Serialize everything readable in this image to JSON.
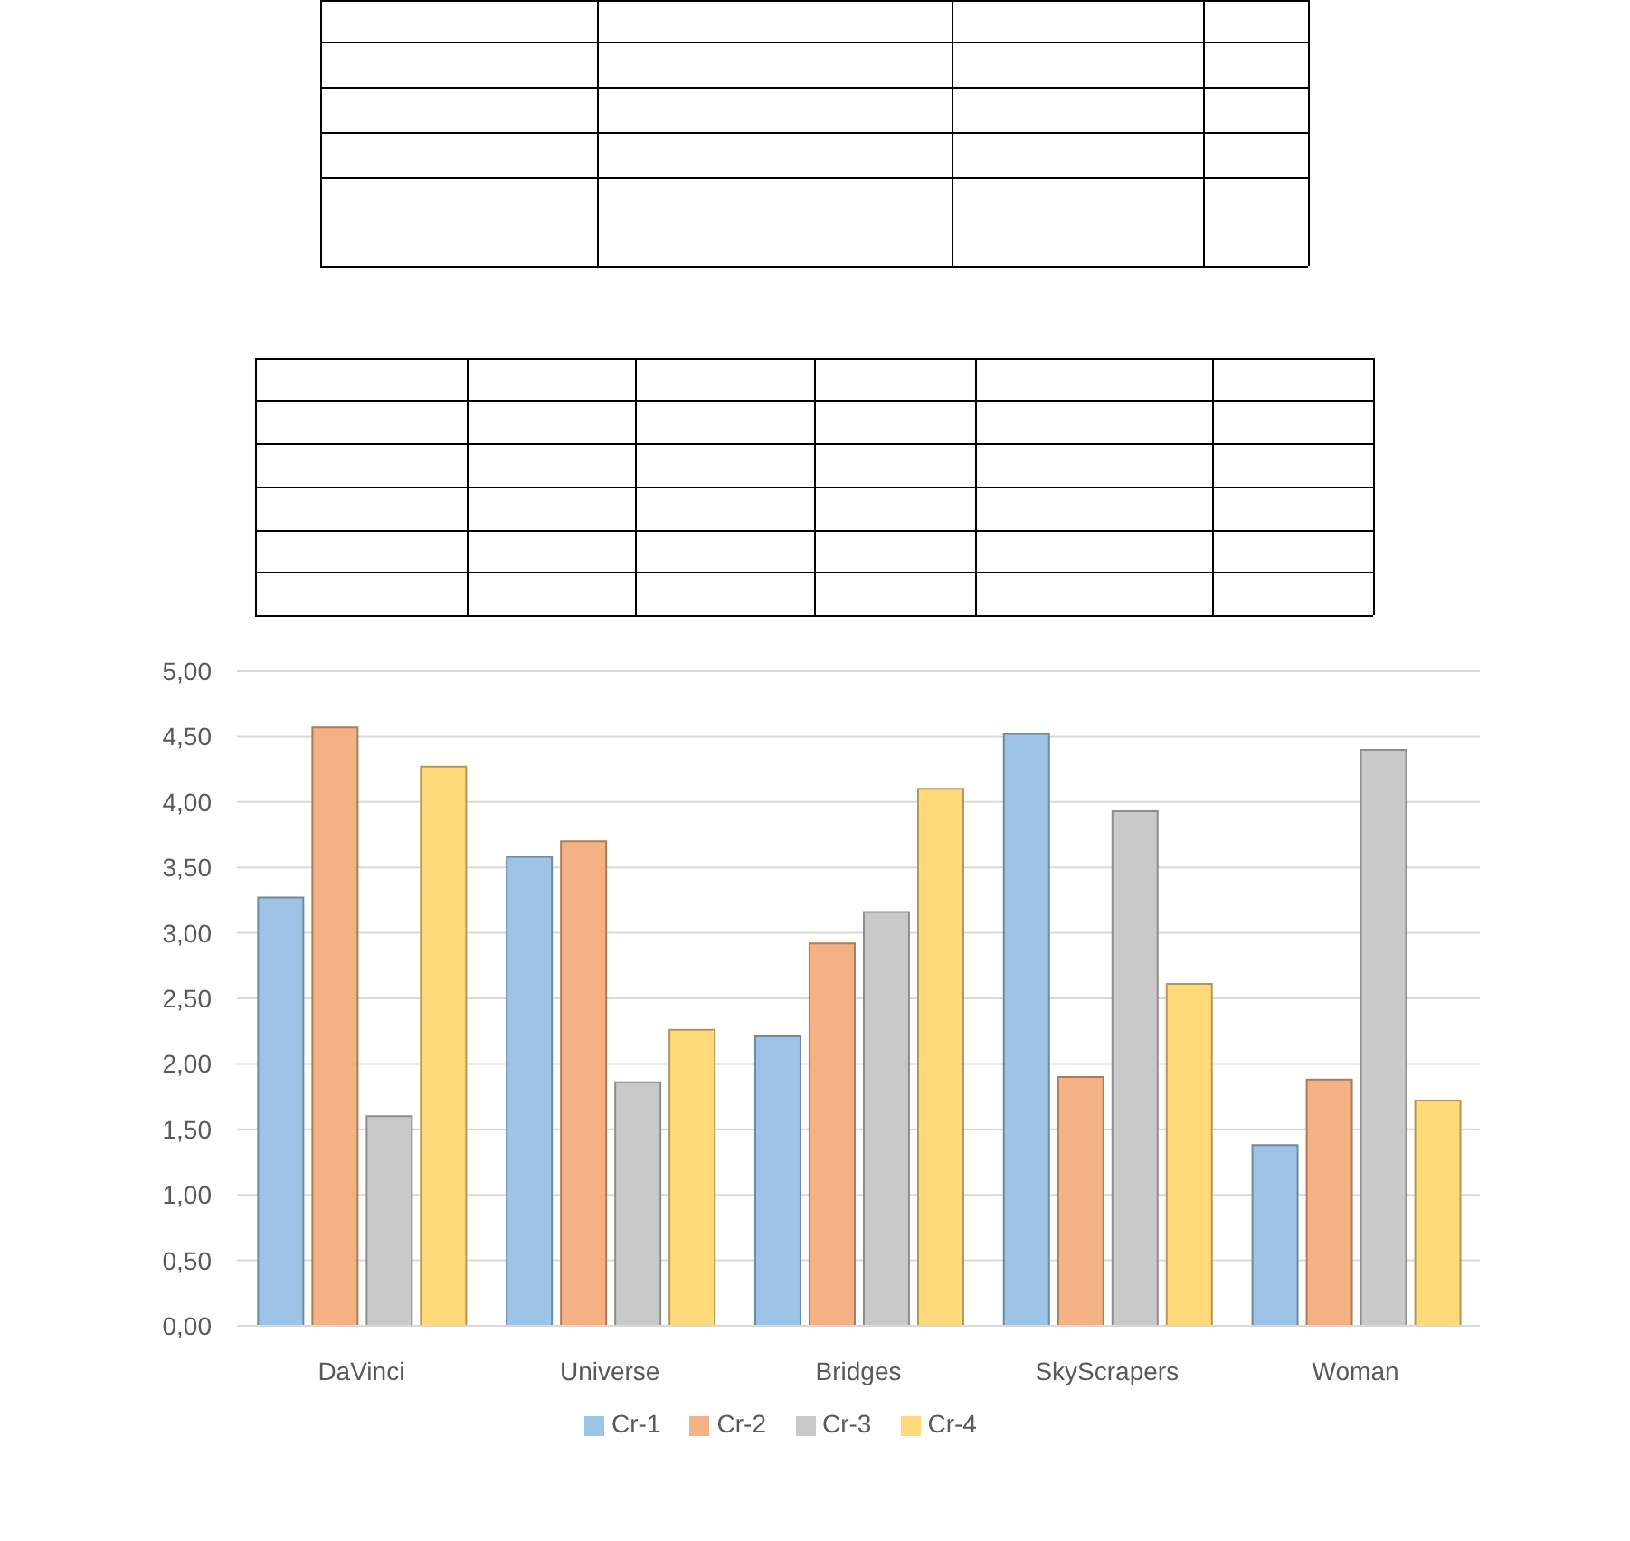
{
  "chart_data": {
    "type": "bar",
    "categories": [
      "DaVinci",
      "Universe",
      "Bridges",
      "SkyScrapers",
      "Woman"
    ],
    "series": [
      {
        "name": "Cr-1",
        "color": "#9dc3e6",
        "values": [
          3.27,
          3.58,
          2.21,
          4.52,
          1.38
        ]
      },
      {
        "name": "Cr-2",
        "color": "#f4b183",
        "values": [
          4.57,
          3.7,
          2.92,
          1.9,
          1.88
        ]
      },
      {
        "name": "Cr-3",
        "color": "#c9c9c9",
        "values": [
          1.6,
          1.86,
          3.16,
          3.93,
          4.4
        ]
      },
      {
        "name": "Cr-4",
        "color": "#ffd97a",
        "values": [
          4.27,
          2.26,
          4.1,
          2.61,
          1.72
        ]
      }
    ],
    "ylim": [
      0,
      5
    ],
    "yticks": [
      {
        "value": 0,
        "label": "0,00"
      },
      {
        "value": 0.5,
        "label": "0,50"
      },
      {
        "value": 1,
        "label": "1,00"
      },
      {
        "value": 1.5,
        "label": "1,50"
      },
      {
        "value": 2,
        "label": "2,00"
      },
      {
        "value": 2.5,
        "label": "2,50"
      },
      {
        "value": 3,
        "label": "3,00"
      },
      {
        "value": 3.5,
        "label": "3,50"
      },
      {
        "value": 4,
        "label": "4,00"
      },
      {
        "value": 4.5,
        "label": "4,50"
      },
      {
        "value": 5,
        "label": "5,00"
      }
    ],
    "grid": "y",
    "legend": "bottom"
  }
}
